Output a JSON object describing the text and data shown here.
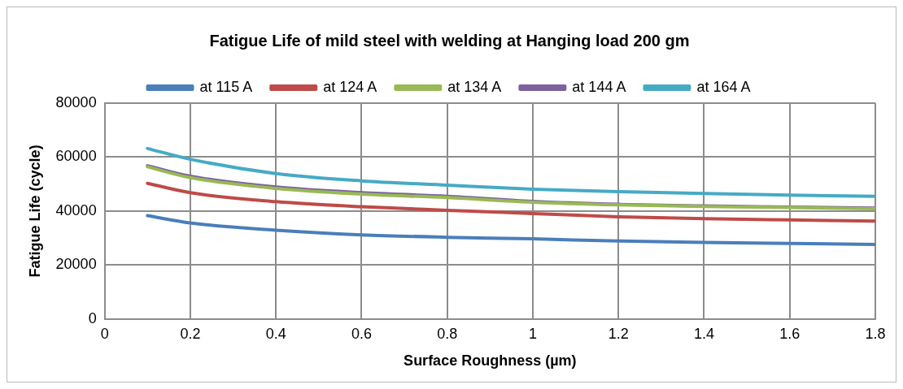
{
  "chart_data": {
    "type": "line",
    "title": "Fatigue Life of mild steel with welding at Hanging load 200 gm",
    "xlabel": "Surface Roughness (µm)",
    "ylabel": "Fatigue Life (cycle)",
    "x": [
      0.1,
      0.2,
      0.4,
      0.6,
      0.8,
      1.0,
      1.2,
      1.4,
      1.6,
      1.8
    ],
    "series": [
      {
        "name": "at 115 A",
        "color": "#4a7ebb",
        "values": [
          38300,
          35600,
          32900,
          31200,
          30300,
          29700,
          28900,
          28400,
          28000,
          27600
        ]
      },
      {
        "name": "at 124 A",
        "color": "#be4b48",
        "values": [
          50300,
          46800,
          43500,
          41600,
          40300,
          39100,
          37900,
          37200,
          36700,
          36300
        ]
      },
      {
        "name": "at 134 A",
        "color": "#98b954",
        "values": [
          56400,
          52400,
          48400,
          46300,
          45000,
          43300,
          42300,
          41700,
          41300,
          40900
        ]
      },
      {
        "name": "at 144 A",
        "color": "#7d60a0",
        "values": [
          56800,
          52900,
          48900,
          46800,
          45500,
          43600,
          42500,
          41900,
          41500,
          41100
        ]
      },
      {
        "name": "at 164 A",
        "color": "#46aac5",
        "values": [
          63200,
          59200,
          53900,
          51200,
          49600,
          48100,
          47200,
          46500,
          45900,
          45500
        ]
      }
    ],
    "xlim": [
      0,
      1.8
    ],
    "xticks": [
      0,
      0.2,
      0.4,
      0.6,
      0.8,
      1,
      1.2,
      1.4,
      1.6,
      1.8
    ],
    "ylim": [
      0,
      80000
    ],
    "yticks": [
      0,
      20000,
      40000,
      60000,
      80000
    ],
    "grid": true,
    "legend": "top",
    "marker": "none",
    "line_style": "solid"
  }
}
